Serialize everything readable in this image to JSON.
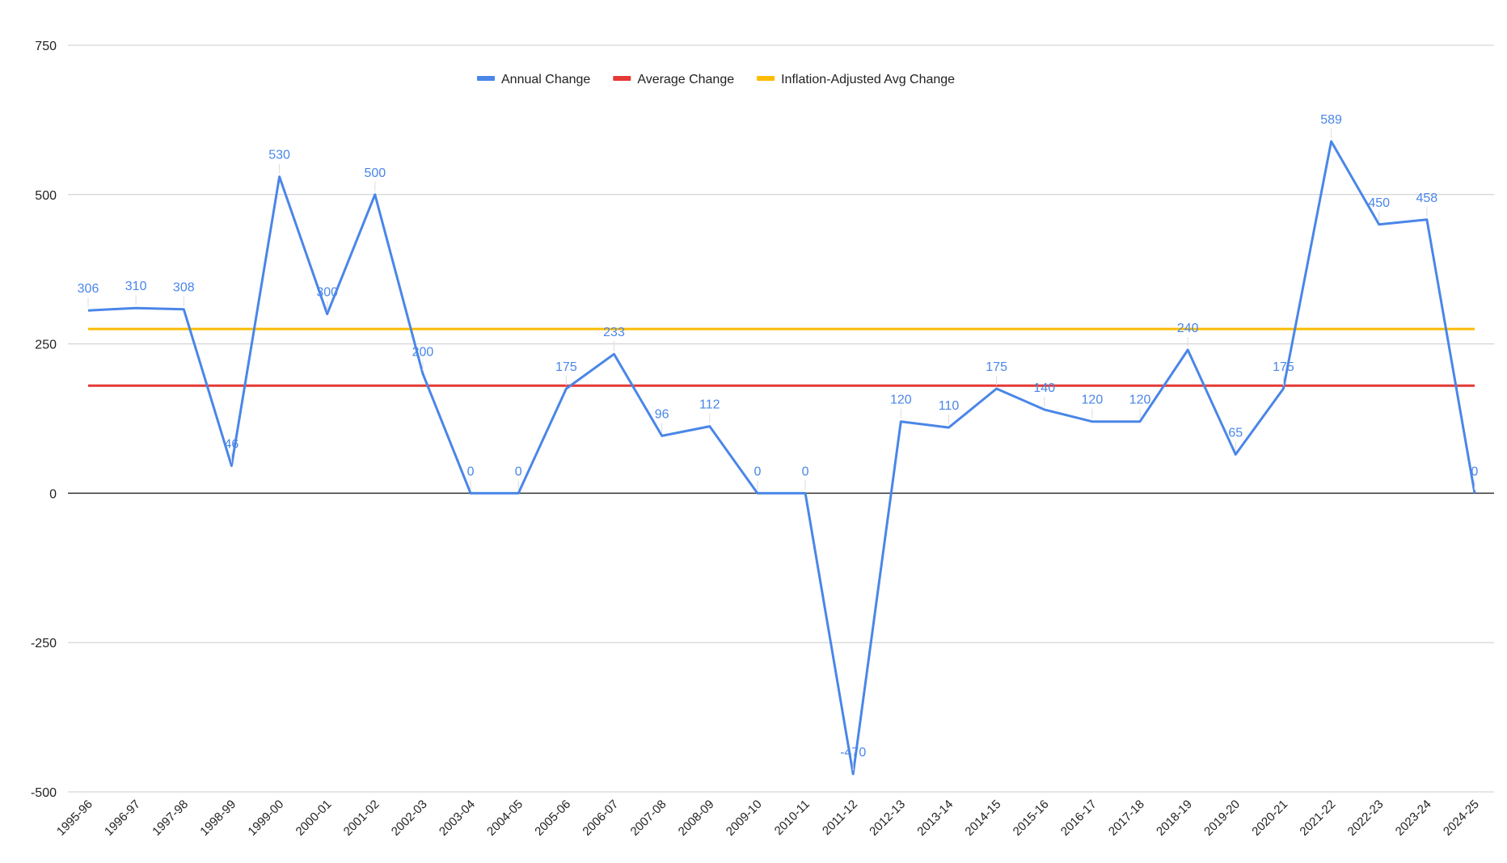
{
  "chart_data": {
    "type": "line",
    "title": "",
    "xlabel": "",
    "ylabel": "",
    "ylim": [
      -500,
      750
    ],
    "yticks": [
      -500,
      -250,
      0,
      250,
      500,
      750
    ],
    "grid": true,
    "legend_position": "top-center",
    "categories": [
      "1995-96",
      "1996-97",
      "1997-98",
      "1998-99",
      "1999-00",
      "2000-01",
      "2001-02",
      "2002-03",
      "2003-04",
      "2004-05",
      "2005-06",
      "2006-07",
      "2007-08",
      "2008-09",
      "2009-10",
      "2010-11",
      "2011-12",
      "2012-13",
      "2013-14",
      "2014-15",
      "2015-16",
      "2016-17",
      "2017-18",
      "2018-19",
      "2019-20",
      "2020-21",
      "2021-22",
      "2022-23",
      "2023-24",
      "2024-25"
    ],
    "series": [
      {
        "name": "Annual Change",
        "color": "#4a86e8",
        "show_labels": true,
        "values": [
          306,
          310,
          308,
          46,
          530,
          300,
          500,
          200,
          0,
          0,
          175,
          233,
          96,
          112,
          0,
          0,
          -470,
          120,
          110,
          175,
          140,
          120,
          120,
          240,
          65,
          175,
          589,
          450,
          458,
          0
        ]
      },
      {
        "name": "Average Change",
        "color": "#e53935",
        "show_labels": false,
        "values": [
          180,
          180,
          180,
          180,
          180,
          180,
          180,
          180,
          180,
          180,
          180,
          180,
          180,
          180,
          180,
          180,
          180,
          180,
          180,
          180,
          180,
          180,
          180,
          180,
          180,
          180,
          180,
          180,
          180,
          180
        ]
      },
      {
        "name": "Inflation-Adjusted Avg Change",
        "color": "#fbbc04",
        "show_labels": false,
        "values": [
          275,
          275,
          275,
          275,
          275,
          275,
          275,
          275,
          275,
          275,
          275,
          275,
          275,
          275,
          275,
          275,
          275,
          275,
          275,
          275,
          275,
          275,
          275,
          275,
          275,
          275,
          275,
          275,
          275,
          275
        ]
      }
    ]
  }
}
